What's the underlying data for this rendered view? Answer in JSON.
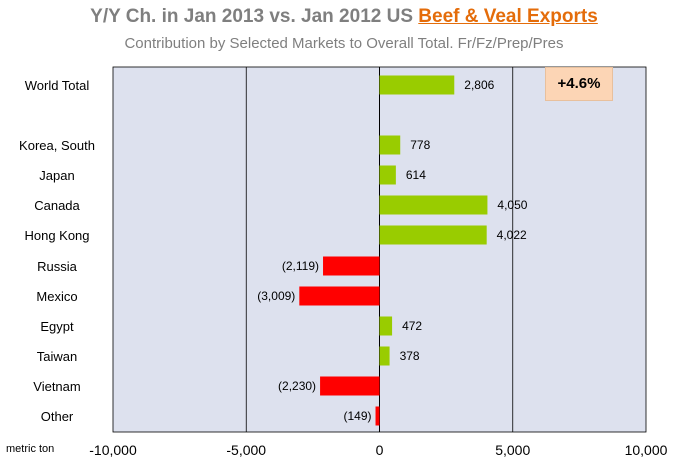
{
  "title": {
    "prefix": "Y/Y Ch.  in Jan 2013 vs. Jan 2012 US ",
    "highlight": "Beef & Veal Exports"
  },
  "subtitle": "Contribution  by Selected Markets to Overall Total.  Fr/Fz/Prep/Pres",
  "badge": "+4.6%",
  "unit_label": "metric ton",
  "colors": {
    "positive": "#99cc00",
    "negative": "#ff0000",
    "plot_bg": "#dde1ee"
  },
  "chart_data": {
    "type": "bar",
    "orientation": "horizontal",
    "categories": [
      "World Total",
      "Korea, South",
      "Japan",
      "Canada",
      "Hong Kong",
      "Russia",
      "Mexico",
      "Egypt",
      "Taiwan",
      "Vietnam",
      "Other"
    ],
    "values": [
      2806,
      778,
      614,
      4050,
      4022,
      -2119,
      -3009,
      472,
      378,
      -2230,
      -149
    ],
    "labels": [
      "2,806",
      "778",
      "614",
      "4,050",
      "4,022",
      "(2,119)",
      "(3,009)",
      "472",
      "378",
      "(2,230)",
      "(149)"
    ],
    "xlim": [
      -10000,
      10000
    ],
    "xticks": [
      -10000,
      -5000,
      0,
      5000,
      10000
    ],
    "xtick_labels": [
      "-10,000",
      "-5,000",
      "0",
      "5,000",
      "10,000"
    ],
    "grid": true
  }
}
